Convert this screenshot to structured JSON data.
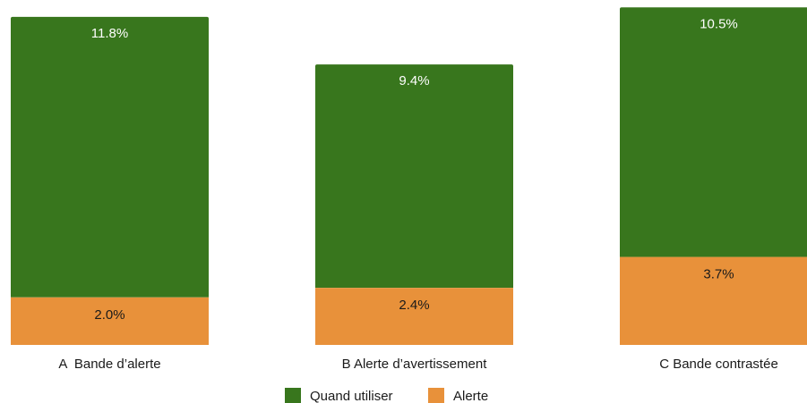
{
  "chart_data": {
    "type": "bar",
    "stacked": true,
    "categories": [
      "A  Bande d’alerte",
      "B Alerte d’avertissement",
      "C Bande contrastée"
    ],
    "series": [
      {
        "name": "Alerte",
        "color": "#E8913A",
        "values": [
          2.0,
          2.4,
          3.7
        ],
        "labels": [
          "2.0%",
          "2.4%",
          "3.7%"
        ]
      },
      {
        "name": "Quand utiliser",
        "color": "#38761D",
        "values": [
          11.8,
          9.4,
          10.5
        ],
        "labels": [
          "11.8%",
          "9.4%",
          "10.5%"
        ]
      }
    ],
    "legend": {
      "position": "bottom",
      "items": [
        {
          "name": "Quand utiliser",
          "color": "#38761D"
        },
        {
          "name": "Alerte",
          "color": "#E8913A"
        }
      ]
    },
    "title": "",
    "xlabel": "",
    "ylabel": "",
    "grid": false
  }
}
